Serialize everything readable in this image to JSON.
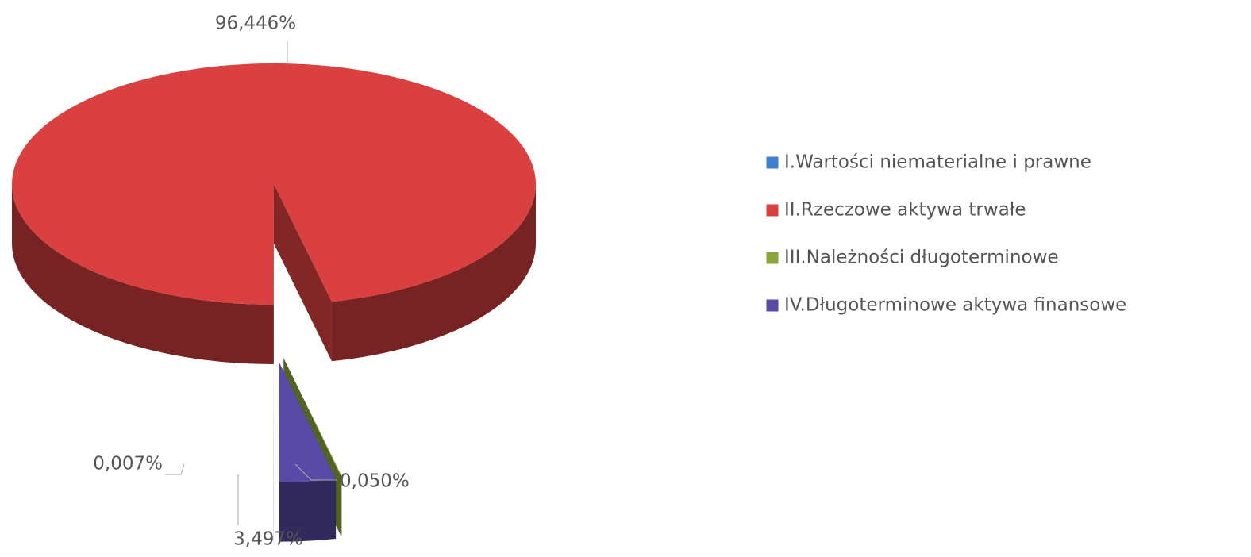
{
  "chart_data": {
    "type": "pie3d",
    "categories": [
      "I.Wartości niematerialne i prawne",
      "II.Rzeczowe aktywa trwałe",
      "III.Należności długoterminowe",
      "IV.Długoterminowe aktywa finansowe"
    ],
    "values": [
      0.007,
      96.446,
      0.05,
      3.497
    ],
    "value_labels": [
      "0,007%",
      "96,446%",
      "0,050%",
      "3,497%"
    ],
    "colors": [
      "#3d7fd0",
      "#d9403f",
      "#8aa53c",
      "#5a4aa8"
    ],
    "legend": "right"
  }
}
